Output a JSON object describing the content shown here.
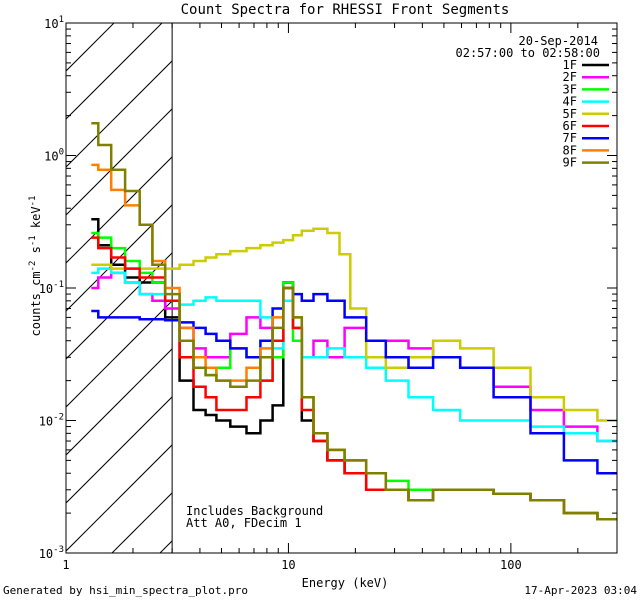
{
  "chart_data": {
    "type": "line",
    "step": true,
    "title": "Count Spectra for RHESSI Front Segments",
    "xlabel": "Energy (keV)",
    "ylabel_parts": [
      "counts cm",
      "-2",
      " s",
      "-1",
      " keV",
      "-1"
    ],
    "xscale": "log",
    "yscale": "log",
    "xlim": [
      1,
      300
    ],
    "ylim": [
      0.001,
      10
    ],
    "x_ticks": [
      {
        "value": 1,
        "label": "1"
      },
      {
        "value": 10,
        "label": "10"
      },
      {
        "value": 100,
        "label": "100"
      }
    ],
    "y_ticks": [
      {
        "value": 0.001,
        "base": "10",
        "exp": "-3"
      },
      {
        "value": 0.01,
        "base": "10",
        "exp": "-2"
      },
      {
        "value": 0.1,
        "base": "10",
        "exp": "-1"
      },
      {
        "value": 1,
        "base": "10",
        "exp": "0"
      },
      {
        "value": 10,
        "base": "10",
        "exp": "1"
      }
    ],
    "date": "20-Sep-2014",
    "time_range": "02:57:00 to 02:58:00",
    "hatched_region": [
      1,
      3
    ],
    "annotations": [
      "Includes Background",
      "Att A0, FDecim 1"
    ],
    "footer_left": "Generated by hsi_min_spectra_plot.pro",
    "footer_right": "17-Apr-2023 03:04",
    "series": [
      {
        "name": "1F",
        "color": "#000000",
        "x": [
          1.3,
          1.5,
          1.7,
          2.0,
          2.3,
          2.6,
          3.0,
          3.5,
          4.0,
          4.5,
          5.0,
          6.0,
          7.0,
          8.0,
          9.0,
          10.0,
          11.0,
          12.0,
          14.0,
          16.0,
          20.0,
          25.0,
          30.0,
          40.0,
          50.0,
          70.0,
          100.0,
          150.0,
          200.0,
          300.0
        ],
        "y": [
          0.33,
          0.21,
          0.15,
          0.12,
          0.11,
          0.11,
          0.06,
          0.02,
          0.012,
          0.011,
          0.01,
          0.009,
          0.008,
          0.01,
          0.013,
          0.11,
          0.05,
          0.01,
          0.007,
          0.005,
          0.004,
          0.003,
          0.003,
          0.0025,
          0.003,
          0.003,
          0.0028,
          0.0025,
          0.002,
          0.0018
        ]
      },
      {
        "name": "2F",
        "color": "#ff00ff",
        "x": [
          1.3,
          1.5,
          1.7,
          2.0,
          2.3,
          2.6,
          3.0,
          3.5,
          4.0,
          4.5,
          5.0,
          6.0,
          7.0,
          8.0,
          9.0,
          10.0,
          11.0,
          12.0,
          14.0,
          16.0,
          20.0,
          25.0,
          30.0,
          40.0,
          50.0,
          70.0,
          100.0,
          150.0,
          200.0,
          300.0
        ],
        "y": [
          0.1,
          0.12,
          0.13,
          0.11,
          0.09,
          0.08,
          0.07,
          0.05,
          0.035,
          0.03,
          0.03,
          0.045,
          0.06,
          0.05,
          0.04,
          0.11,
          0.05,
          0.03,
          0.04,
          0.03,
          0.05,
          0.04,
          0.04,
          0.035,
          0.03,
          0.025,
          0.018,
          0.012,
          0.009,
          0.007
        ]
      },
      {
        "name": "3F",
        "color": "#00ff00",
        "x": [
          1.3,
          1.5,
          1.7,
          2.0,
          2.3,
          2.6,
          3.0,
          3.5,
          4.0,
          4.5,
          5.0,
          6.0,
          7.0,
          8.0,
          9.0,
          10.0,
          11.0,
          12.0,
          14.0,
          16.0,
          20.0,
          25.0,
          30.0,
          40.0,
          50.0,
          70.0,
          100.0,
          150.0,
          200.0,
          300.0
        ],
        "y": [
          0.26,
          0.24,
          0.2,
          0.16,
          0.13,
          0.11,
          0.08,
          0.04,
          0.025,
          0.022,
          0.025,
          0.035,
          0.03,
          0.02,
          0.03,
          0.11,
          0.04,
          0.015,
          0.008,
          0.006,
          0.005,
          0.004,
          0.0035,
          0.003,
          0.003,
          0.003,
          0.0028,
          0.0025,
          0.002,
          0.0018
        ]
      },
      {
        "name": "4F",
        "color": "#00ffff",
        "x": [
          1.3,
          1.5,
          1.7,
          2.0,
          2.3,
          2.6,
          3.0,
          3.5,
          4.0,
          4.5,
          5.0,
          6.0,
          7.0,
          8.0,
          9.0,
          10.0,
          11.0,
          12.0,
          14.0,
          16.0,
          20.0,
          25.0,
          30.0,
          40.0,
          50.0,
          70.0,
          100.0,
          150.0,
          200.0,
          300.0
        ],
        "y": [
          0.13,
          0.14,
          0.13,
          0.11,
          0.09,
          0.09,
          0.08,
          0.075,
          0.08,
          0.085,
          0.08,
          0.08,
          0.08,
          0.06,
          0.035,
          0.08,
          0.05,
          0.03,
          0.03,
          0.035,
          0.03,
          0.025,
          0.02,
          0.015,
          0.012,
          0.01,
          0.01,
          0.009,
          0.008,
          0.007
        ]
      },
      {
        "name": "5F",
        "color": "#cccc00",
        "x": [
          1.3,
          1.5,
          1.7,
          2.0,
          2.3,
          2.6,
          3.0,
          3.5,
          4.0,
          4.5,
          5.0,
          6.0,
          7.0,
          8.0,
          9.0,
          10.0,
          11.0,
          12.0,
          14.0,
          16.0,
          18.0,
          20.0,
          25.0,
          30.0,
          40.0,
          50.0,
          70.0,
          100.0,
          150.0,
          200.0,
          300.0
        ],
        "y": [
          0.15,
          0.15,
          0.14,
          0.14,
          0.14,
          0.14,
          0.14,
          0.15,
          0.16,
          0.17,
          0.18,
          0.19,
          0.2,
          0.21,
          0.22,
          0.23,
          0.25,
          0.27,
          0.28,
          0.26,
          0.18,
          0.07,
          0.03,
          0.025,
          0.03,
          0.04,
          0.035,
          0.025,
          0.015,
          0.012,
          0.01
        ]
      },
      {
        "name": "6F",
        "color": "#ff0000",
        "x": [
          1.3,
          1.5,
          1.7,
          2.0,
          2.3,
          2.6,
          3.0,
          3.5,
          4.0,
          4.5,
          5.0,
          6.0,
          7.0,
          8.0,
          9.0,
          10.0,
          11.0,
          12.0,
          14.0,
          16.0,
          20.0,
          25.0,
          30.0,
          40.0,
          50.0,
          70.0,
          100.0,
          150.0,
          200.0,
          300.0
        ],
        "y": [
          0.24,
          0.2,
          0.17,
          0.14,
          0.12,
          0.12,
          0.08,
          0.03,
          0.018,
          0.015,
          0.012,
          0.012,
          0.015,
          0.02,
          0.04,
          0.1,
          0.05,
          0.012,
          0.007,
          0.005,
          0.004,
          0.003,
          0.003,
          0.0025,
          0.003,
          0.003,
          0.0028,
          0.0025,
          0.002,
          0.0018
        ]
      },
      {
        "name": "7F",
        "color": "#0000ff",
        "x": [
          1.3,
          1.5,
          1.7,
          2.0,
          2.3,
          2.6,
          3.0,
          3.5,
          4.0,
          4.5,
          5.0,
          6.0,
          7.0,
          8.0,
          9.0,
          10.0,
          11.0,
          12.0,
          14.0,
          16.0,
          20.0,
          25.0,
          30.0,
          40.0,
          50.0,
          70.0,
          100.0,
          150.0,
          200.0,
          300.0
        ],
        "y": [
          0.067,
          0.06,
          0.06,
          0.06,
          0.058,
          0.058,
          0.057,
          0.055,
          0.05,
          0.045,
          0.04,
          0.035,
          0.03,
          0.04,
          0.07,
          0.1,
          0.09,
          0.08,
          0.09,
          0.08,
          0.06,
          0.04,
          0.03,
          0.025,
          0.03,
          0.025,
          0.015,
          0.008,
          0.005,
          0.004
        ]
      },
      {
        "name": "8F",
        "color": "#ff8000",
        "x": [
          1.3,
          1.5,
          1.7,
          2.0,
          2.3,
          2.6,
          3.0,
          3.5,
          4.0,
          4.5,
          5.0,
          6.0,
          7.0,
          8.0,
          9.0,
          10.0,
          11.0,
          12.0,
          14.0,
          16.0,
          20.0,
          25.0,
          30.0,
          40.0,
          50.0,
          70.0,
          100.0,
          150.0,
          200.0,
          300.0
        ],
        "y": [
          0.85,
          0.78,
          0.55,
          0.42,
          0.3,
          0.16,
          0.1,
          0.05,
          0.03,
          0.025,
          0.02,
          0.02,
          0.025,
          0.035,
          0.06,
          0.1,
          0.06,
          0.015,
          0.008,
          0.006,
          0.005,
          0.004,
          0.003,
          0.0025,
          0.003,
          0.003,
          0.0028,
          0.0025,
          0.002,
          0.0018
        ]
      },
      {
        "name": "9F",
        "color": "#808000",
        "x": [
          1.3,
          1.5,
          1.7,
          2.0,
          2.3,
          2.6,
          3.0,
          3.5,
          4.0,
          4.5,
          5.0,
          6.0,
          7.0,
          8.0,
          9.0,
          10.0,
          11.0,
          12.0,
          14.0,
          16.0,
          20.0,
          25.0,
          30.0,
          40.0,
          50.0,
          70.0,
          100.0,
          150.0,
          200.0,
          300.0
        ],
        "y": [
          1.75,
          1.2,
          0.78,
          0.54,
          0.3,
          0.15,
          0.09,
          0.04,
          0.025,
          0.022,
          0.02,
          0.018,
          0.02,
          0.03,
          0.05,
          0.1,
          0.06,
          0.015,
          0.008,
          0.006,
          0.005,
          0.004,
          0.003,
          0.0025,
          0.003,
          0.003,
          0.0028,
          0.0025,
          0.002,
          0.0018
        ]
      }
    ]
  }
}
